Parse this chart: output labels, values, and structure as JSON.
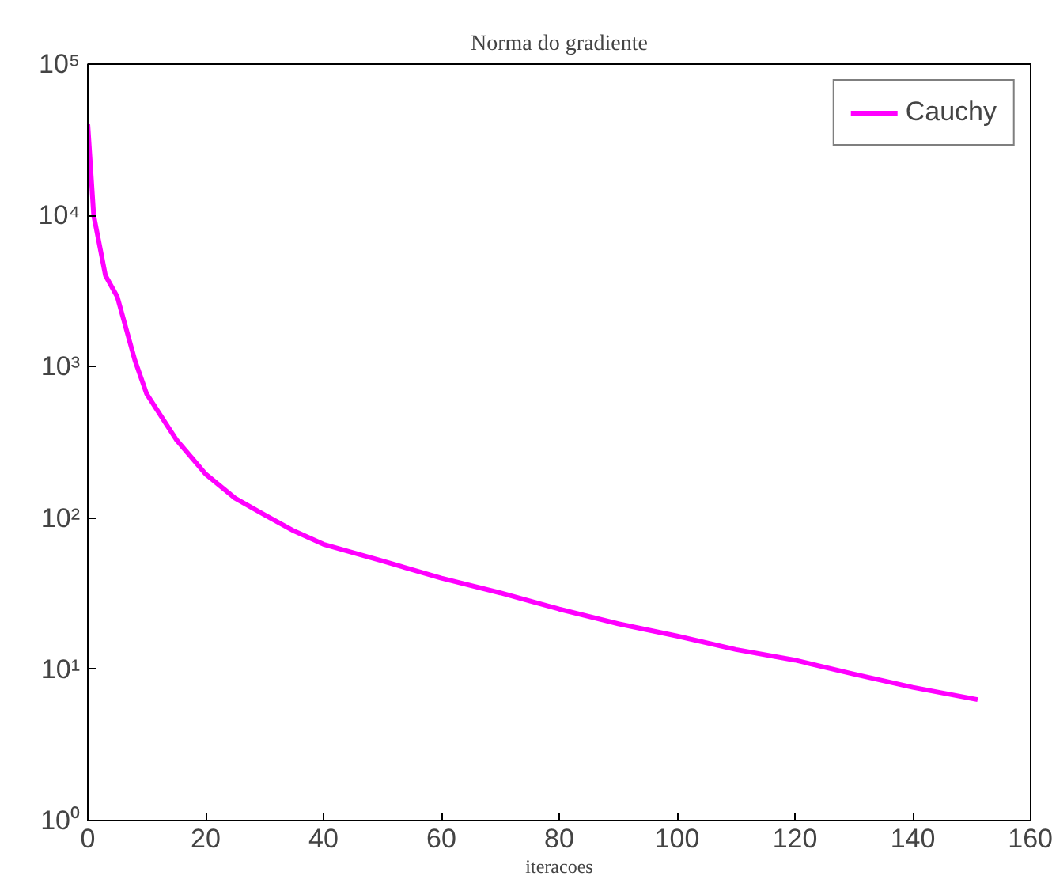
{
  "chart_data": {
    "type": "line",
    "title": "Norma do gradiente",
    "xlabel": "iteracoes",
    "log": "y",
    "grid": false,
    "legend": "top right",
    "line_style": "solid",
    "marker": "none",
    "xlim": [
      0,
      160
    ],
    "xticks": [
      0,
      20,
      40,
      60,
      80,
      100,
      120,
      140,
      160
    ],
    "ylim": [
      1,
      100000
    ],
    "yticks": [
      {
        "value": 1,
        "label": "10⁰"
      },
      {
        "value": 10,
        "label": "10¹"
      },
      {
        "value": 100,
        "label": "10²"
      },
      {
        "value": 1000,
        "label": "10³"
      },
      {
        "value": 10000,
        "label": "10⁴"
      },
      {
        "value": 100000,
        "label": "10⁵"
      }
    ],
    "series": [
      {
        "name": "Cauchy",
        "color": "#ff00ff",
        "x": [
          0,
          1,
          3,
          5,
          8,
          10,
          15,
          20,
          25,
          30,
          35,
          40,
          50,
          60,
          70,
          80,
          90,
          100,
          110,
          120,
          130,
          140,
          151
        ],
        "values": [
          40000,
          10000,
          4000,
          2900,
          1100,
          660,
          330,
          195,
          135,
          105,
          82,
          67,
          52,
          40,
          32,
          25,
          20,
          16.6,
          13.5,
          11.5,
          9.3,
          7.6,
          6.3
        ]
      }
    ]
  }
}
